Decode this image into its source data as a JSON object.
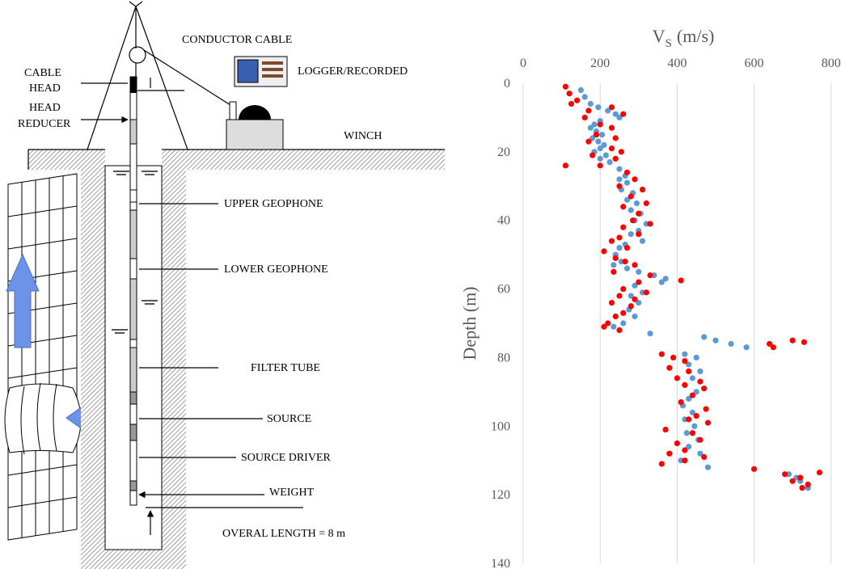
{
  "diagram": {
    "conductor_cable": "CONDUCTOR CABLE",
    "logger": "LOGGER/RECORDED",
    "cable_head": [
      "CABLE",
      "HEAD"
    ],
    "head_reducer": [
      "HEAD",
      "REDUCER"
    ],
    "winch": "WINCH",
    "upper_geophone": "UPPER GEOPHONE",
    "lower_geophone": "LOWER GEOPHONE",
    "filter_tube": "FILTER TUBE",
    "source": "SOURCE",
    "source_driver": "SOURCE DRIVER",
    "weight": "WEIGHT",
    "overall_length": "OVERAL LENGTH = 8 m"
  },
  "chart_data": {
    "type": "scatter",
    "xlabel": "V",
    "xlabel_subscript": "S",
    "xlabel_unit": "(m/s)",
    "ylabel": "Depth (m)",
    "xlim": [
      0,
      870
    ],
    "xticks": [
      0,
      200,
      400,
      600,
      800
    ],
    "ylim": [
      0,
      140
    ],
    "yticks": [
      0,
      20,
      40,
      60,
      80,
      100,
      120,
      140
    ],
    "y_inverted": true,
    "x_axis_position": "top",
    "grid": "x",
    "series": [
      {
        "color": "#5b9bd5",
        "x": [
          150,
          160,
          175,
          195,
          220,
          240,
          250,
          200,
          185,
          175,
          190,
          205,
          180,
          195,
          210,
          200,
          185,
          215,
          200,
          225,
          250,
          265,
          250,
          270,
          255,
          285,
          270,
          295,
          280,
          305,
          290,
          320,
          300,
          280,
          310,
          265,
          250,
          240,
          255,
          235,
          270,
          300,
          340,
          370,
          360,
          290,
          310,
          280,
          300,
          275,
          290,
          260,
          235,
          330,
          470,
          500,
          540,
          580,
          420,
          450,
          430,
          460,
          440,
          420,
          450,
          430,
          415,
          440,
          420,
          445,
          425,
          455,
          430,
          460,
          410,
          480,
          690,
          710,
          720,
          740
        ],
        "values": [
          2,
          4,
          6,
          7,
          8,
          9,
          10,
          11,
          12,
          13,
          14,
          15,
          16,
          17,
          18,
          19,
          20,
          21,
          22,
          23,
          25,
          27,
          28,
          29,
          31,
          32,
          34,
          35,
          37,
          38,
          40,
          41,
          43,
          44,
          46,
          47,
          48,
          50,
          52,
          53,
          54,
          55,
          56,
          57,
          58,
          59,
          61,
          62,
          64,
          66,
          68,
          70,
          71,
          73,
          74,
          75,
          76,
          77,
          79,
          80,
          82,
          84,
          86,
          88,
          90,
          92,
          94,
          96,
          98,
          100,
          102,
          104,
          106,
          108,
          110,
          112,
          114,
          115,
          116,
          118
        ]
      },
      {
        "color": "#ff0000",
        "x": [
          110,
          120,
          140,
          125,
          170,
          230,
          260,
          160,
          200,
          230,
          190,
          240,
          170,
          230,
          255,
          180,
          240,
          110,
          200,
          270,
          290,
          250,
          310,
          280,
          320,
          260,
          300,
          285,
          330,
          260,
          300,
          250,
          230,
          270,
          210,
          240,
          265,
          290,
          235,
          330,
          410,
          300,
          260,
          320,
          250,
          290,
          230,
          280,
          260,
          240,
          220,
          210,
          250,
          700,
          730,
          640,
          650,
          360,
          390,
          420,
          380,
          430,
          400,
          460,
          420,
          470,
          440,
          410,
          475,
          450,
          430,
          480,
          370,
          440,
          460,
          400,
          420,
          380,
          470,
          360,
          420,
          600,
          680,
          720,
          770,
          740,
          700,
          725
        ],
        "values": [
          1,
          3,
          5,
          6,
          8,
          7,
          9,
          10,
          12,
          13,
          15,
          16,
          17,
          19,
          20,
          21,
          22,
          24,
          24,
          26,
          28,
          30,
          31,
          33,
          35,
          36,
          38,
          40,
          41,
          42,
          44,
          45,
          46,
          48,
          49,
          51,
          52,
          53,
          55,
          56,
          57.5,
          58,
          60,
          61,
          62,
          63,
          64,
          65,
          67,
          68,
          70,
          71,
          72,
          75,
          75.5,
          76,
          77,
          79,
          80,
          81,
          83,
          84,
          86,
          87,
          88,
          89,
          91,
          93,
          95,
          97,
          98,
          99,
          101,
          102,
          104,
          105,
          107,
          108,
          109,
          111,
          110,
          112.5,
          114,
          115,
          113.5,
          117,
          116,
          118
        ]
      }
    ]
  }
}
